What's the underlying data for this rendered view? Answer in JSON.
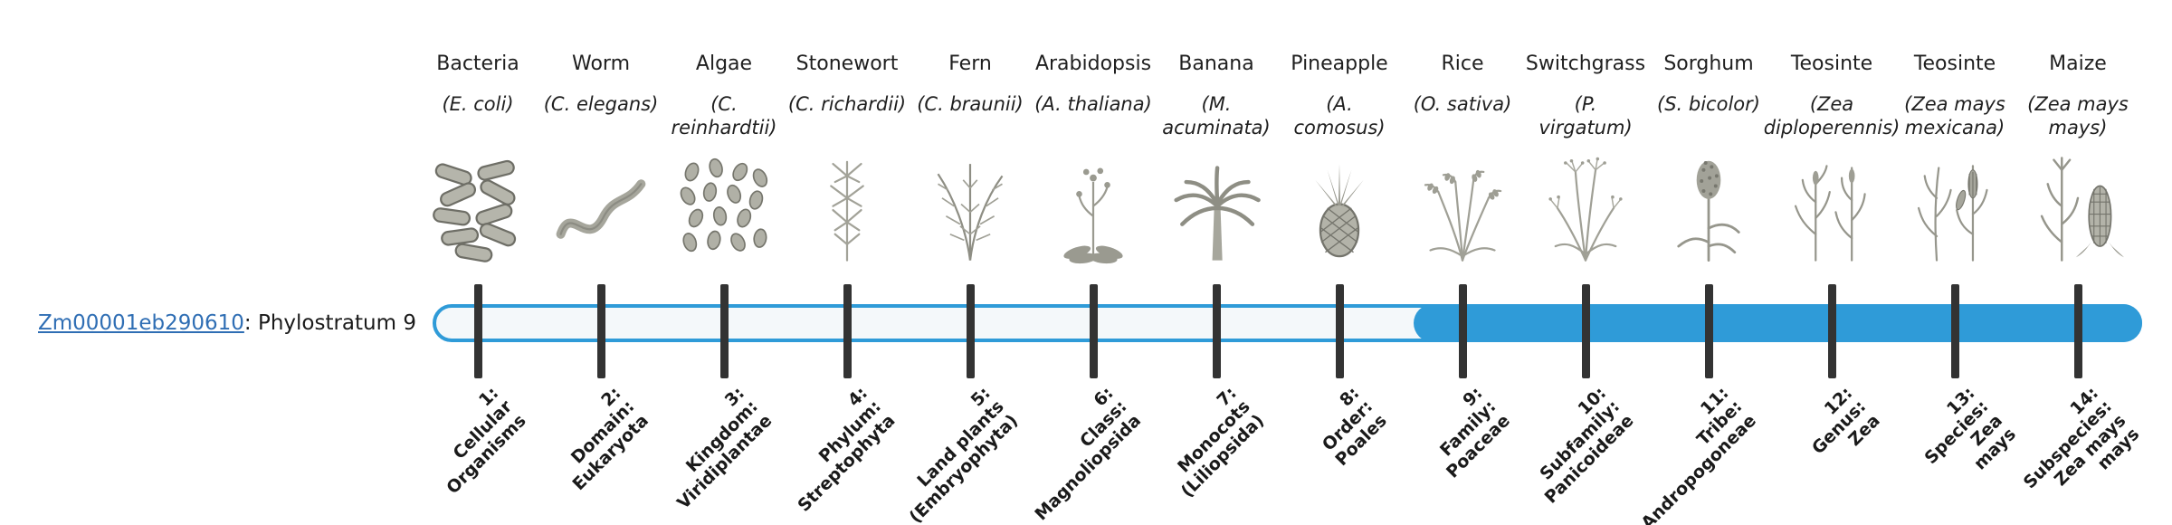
{
  "gene": {
    "id": "Zm00001eb290610",
    "suffix": ": Phylostratum 9",
    "link_color": "#2f6eb4"
  },
  "bar": {
    "color": "#2f9bd8",
    "track_color": "#f4f8fa",
    "highlight_from_stage": 9
  },
  "tick_color": "#333333",
  "columns": [
    {
      "stage": 1,
      "name": "Bacteria",
      "sci": "(E. coli)",
      "icon": "bacteria-icon",
      "stage_lines": [
        "1:",
        "Cellular",
        "Organisms"
      ]
    },
    {
      "stage": 2,
      "name": "Worm",
      "sci": "(C. elegans)",
      "icon": "worm-icon",
      "stage_lines": [
        "2:",
        "Domain:",
        "Eukaryota"
      ]
    },
    {
      "stage": 3,
      "name": "Algae",
      "sci": "(C.\nreinhardtii)",
      "icon": "algae-icon",
      "stage_lines": [
        "3:",
        "Kingdom:",
        "Viridiplantae"
      ]
    },
    {
      "stage": 4,
      "name": "Stonewort",
      "sci": "(C. richardii)",
      "icon": "stonewort-icon",
      "stage_lines": [
        "4:",
        "Phylum:",
        "Streptophyta"
      ]
    },
    {
      "stage": 5,
      "name": "Fern",
      "sci": "(C. braunii)",
      "icon": "fern-icon",
      "stage_lines": [
        "5:",
        "Land plants",
        "(Embryophyta)"
      ]
    },
    {
      "stage": 6,
      "name": "Arabidopsis",
      "sci": "(A. thaliana)",
      "icon": "arabidopsis-icon",
      "stage_lines": [
        "6:",
        "Class:",
        "Magnoliopsida"
      ]
    },
    {
      "stage": 7,
      "name": "Banana",
      "sci": "(M.\nacuminata)",
      "icon": "banana-icon",
      "stage_lines": [
        "7:",
        "Monocots",
        "(Liliopsida)"
      ]
    },
    {
      "stage": 8,
      "name": "Pineapple",
      "sci": "(A.\ncomosus)",
      "icon": "pineapple-icon",
      "stage_lines": [
        "8:",
        "Order:",
        "Poales"
      ]
    },
    {
      "stage": 9,
      "name": "Rice",
      "sci": "(O. sativa)",
      "icon": "rice-icon",
      "stage_lines": [
        "9:",
        "Family:",
        "Poaceae"
      ]
    },
    {
      "stage": 10,
      "name": "Switchgrass",
      "sci": "(P.\nvirgatum)",
      "icon": "switchgrass-icon",
      "stage_lines": [
        "10:",
        "Subfamily:",
        "Panicoideae"
      ]
    },
    {
      "stage": 11,
      "name": "Sorghum",
      "sci": "(S. bicolor)",
      "icon": "sorghum-icon",
      "stage_lines": [
        "11:",
        "Tribe:",
        "Andropogoneae"
      ]
    },
    {
      "stage": 12,
      "name": "Teosinte",
      "sci": "(Zea\ndiploperennis)",
      "icon": "teosinte-diploperennis-icon",
      "stage_lines": [
        "12:",
        "Genus:",
        "Zea"
      ]
    },
    {
      "stage": 13,
      "name": "Teosinte",
      "sci": "(Zea mays\nmexicana)",
      "icon": "teosinte-mexicana-icon",
      "stage_lines": [
        "13:",
        "Species:",
        "Zea",
        "mays"
      ]
    },
    {
      "stage": 14,
      "name": "Maize",
      "sci": "(Zea mays\nmays)",
      "icon": "maize-icon",
      "stage_lines": [
        "14:",
        "Subspecies:",
        "Zea mays",
        "mays"
      ]
    }
  ]
}
